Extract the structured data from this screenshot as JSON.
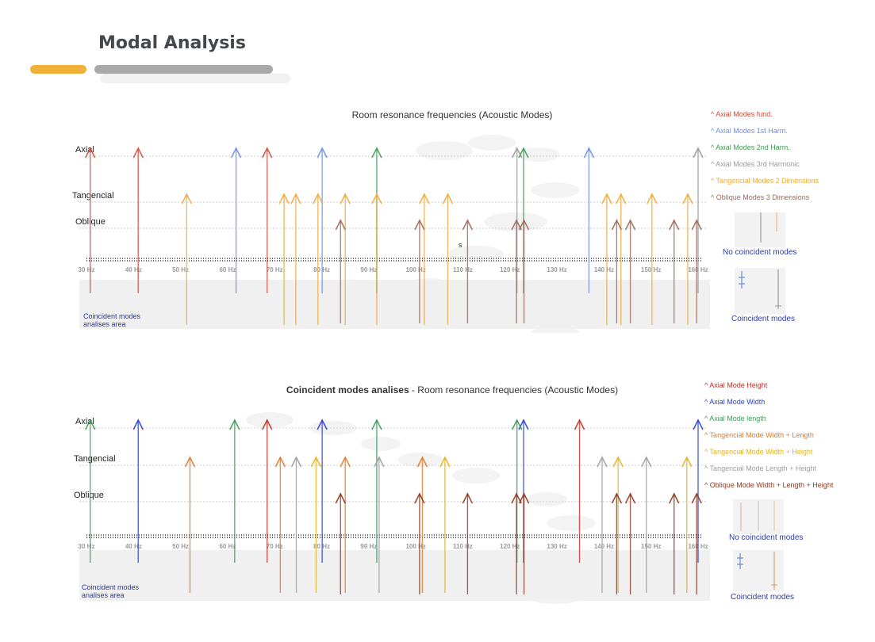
{
  "page": {
    "title": "Modal Analysis"
  },
  "colors": {
    "axial_fund": "#d14a3b",
    "axial_h1": "#6f8ee6",
    "axial_h2": "#3e9b4f",
    "axial_h3": "#9a9a9a",
    "tangential": "#eea93c",
    "oblique": "#9c6a5a",
    "height": "#c0302a",
    "width": "#2c3fd0",
    "length": "#3d9a57",
    "tan_wl": "#e07a2a",
    "tan_wh": "#e3b322",
    "tan_lh": "#9e9e9e",
    "obl_wlh": "#8e3b22"
  },
  "chart_data": [
    {
      "type": "scatter",
      "title": "Room resonance frequencies (Acoustic Modes)",
      "xlim": [
        30,
        160
      ],
      "tick_labels": [
        "30 Hz",
        "40 Hz",
        "50 Hz",
        "60 Hz",
        "70 Hz",
        "80 Hz",
        "90 Hz",
        "100 Hz",
        "110 Hz",
        "120 Hz",
        "130 Hz",
        "140 Hz",
        "150 Hz",
        "160 Hz"
      ],
      "rows": [
        "Axial",
        "Tangencial",
        "Oblique"
      ],
      "area_label": [
        "Coincident modes",
        "analises area"
      ],
      "stray_label": "s",
      "series": [
        {
          "name": "Axial Modes fund.",
          "color": "#d14a3b",
          "row": "Axial",
          "x": [
            30.8,
            41.0,
            68.4
          ]
        },
        {
          "name": "Axial Modes 1st Harm.",
          "color": "#6f8ee6",
          "row": "Axial",
          "x": [
            61.8,
            80.1,
            136.8
          ]
        },
        {
          "name": "Axial Modes 2nd Harm.",
          "color": "#3e9b4f",
          "row": "Axial",
          "x": [
            91.7,
            122.9
          ]
        },
        {
          "name": "Axial Modes 3rd Harmonic",
          "color": "#9a9a9a",
          "row": "Axial",
          "x": [
            121.5,
            160.0
          ]
        },
        {
          "name": "Tangencial Modes 2 Dimensions",
          "color": "#eea93c",
          "row": "Tangencial",
          "x": [
            51.3,
            72.0,
            74.5,
            79.2,
            85.0,
            91.7,
            101.8,
            106.8,
            140.6,
            143.6,
            150.2,
            157.8
          ]
        },
        {
          "name": "Oblique Modes 3 Dimensions",
          "color": "#9c6a5a",
          "row": "Oblique",
          "x": [
            84.0,
            100.8,
            111.0,
            121.4,
            123.0,
            142.7,
            145.6,
            154.9,
            159.7
          ]
        }
      ],
      "side_panels": [
        "No coincident modes",
        "Coincident modes"
      ]
    },
    {
      "type": "scatter",
      "title_bold": "Coincident  modes analises",
      "title": " - Room resonance frequencies (Acoustic Modes)",
      "xlim": [
        30,
        160
      ],
      "tick_labels": [
        "30 Hz",
        "40 Hz",
        "50 Hz",
        "60 Hz",
        "70 Hz",
        "80 Hz",
        "90 Hz",
        "100 Hz",
        "110 Hz",
        "120 Hz",
        "130 Hz",
        "140 Hz",
        "150 Hz",
        "160 Hz"
      ],
      "rows": [
        "Axial",
        "Tangencial",
        "Oblique"
      ],
      "area_label": [
        "Coincident modes",
        "analises area"
      ],
      "series": [
        {
          "name": "Axial Mode Height",
          "color": "#c0302a",
          "row": "Axial",
          "x": [
            68.4,
            134.8
          ]
        },
        {
          "name": "Axial Mode Width",
          "color": "#2c3fd0",
          "row": "Axial",
          "x": [
            41.0,
            80.1,
            122.9,
            160.0
          ]
        },
        {
          "name": "Axial Mode length",
          "color": "#3d9a57",
          "row": "Axial",
          "x": [
            30.8,
            61.5,
            91.7,
            121.5
          ]
        },
        {
          "name": "Tangencial Mode Width + Length",
          "color": "#e07a2a",
          "row": "Tangencial",
          "x": [
            52.0,
            71.2,
            85.0,
            101.4
          ]
        },
        {
          "name": "Tangencial Mode Width + Height",
          "color": "#e3b322",
          "row": "Tangencial",
          "x": [
            78.8,
            106.2,
            143.0,
            157.6
          ]
        },
        {
          "name": "Tangencial Mode Length + Height",
          "color": "#9e9e9e",
          "row": "Tangencial",
          "x": [
            74.6,
            92.2,
            139.6,
            149.0
          ]
        },
        {
          "name": "Oblique Mode Width + Length + Height",
          "color": "#8e3b22",
          "row": "Oblique",
          "x": [
            84.0,
            100.8,
            111.0,
            121.4,
            123.0,
            142.7,
            145.6,
            154.9,
            159.7
          ]
        }
      ],
      "side_panels": [
        "No coincident modes",
        "Coincident modes"
      ]
    }
  ]
}
